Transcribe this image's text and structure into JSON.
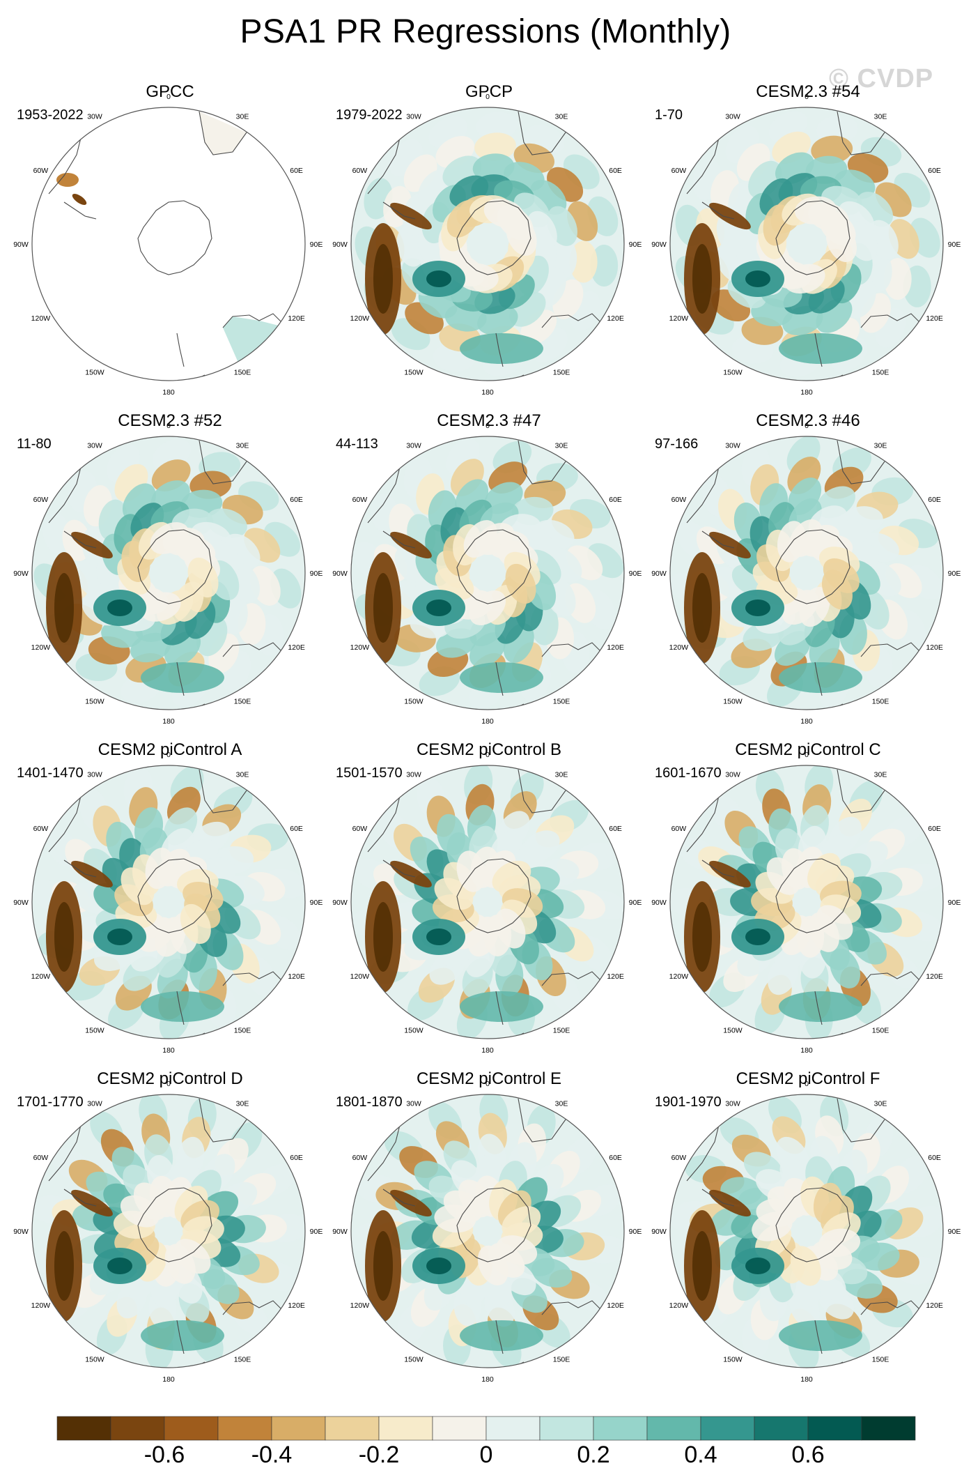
{
  "title": "PSA1 PR Regressions (Monthly)",
  "watermark": "© CVDP",
  "longitude_labels": [
    "0",
    "30E",
    "60E",
    "90E",
    "120E",
    "150E",
    "180",
    "150W",
    "120W",
    "90W",
    "60W",
    "30W"
  ],
  "panels": [
    {
      "title": "GPCC",
      "period": "1953-2022",
      "data_coverage": "land-only"
    },
    {
      "title": "GPCP",
      "period": "1979-2022",
      "data_coverage": "global"
    },
    {
      "title": "CESM2.3 #54",
      "period": "1-70",
      "data_coverage": "global"
    },
    {
      "title": "CESM2.3 #52",
      "period": "11-80",
      "data_coverage": "global"
    },
    {
      "title": "CESM2.3 #47",
      "period": "44-113",
      "data_coverage": "global"
    },
    {
      "title": "CESM2.3 #46",
      "period": "97-166",
      "data_coverage": "global"
    },
    {
      "title": "CESM2 piControl A",
      "period": "1401-1470",
      "data_coverage": "global"
    },
    {
      "title": "CESM2 piControl B",
      "period": "1501-1570",
      "data_coverage": "global"
    },
    {
      "title": "CESM2 piControl C",
      "period": "1601-1670",
      "data_coverage": "global"
    },
    {
      "title": "CESM2 piControl D",
      "period": "1701-1770",
      "data_coverage": "global"
    },
    {
      "title": "CESM2 piControl E",
      "period": "1801-1870",
      "data_coverage": "global"
    },
    {
      "title": "CESM2 piControl F",
      "period": "1901-1970",
      "data_coverage": "global"
    }
  ],
  "colorbar": {
    "colors": [
      "#543005",
      "#7a4510",
      "#9e5c1c",
      "#c1833a",
      "#d8ad67",
      "#ecd29b",
      "#f7ebcb",
      "#f5f2ea",
      "#e4f1ef",
      "#c2e6e0",
      "#96d4ca",
      "#63b8ab",
      "#35978f",
      "#16776e",
      "#035a52",
      "#003c30"
    ],
    "labels": [
      "-0.6",
      "-0.4",
      "-0.2",
      "0",
      "0.2",
      "0.4",
      "0.6"
    ],
    "label_values": [
      -0.6,
      -0.4,
      -0.2,
      0,
      0.2,
      0.4,
      0.6
    ],
    "min": -0.8,
    "max": 0.8
  }
}
